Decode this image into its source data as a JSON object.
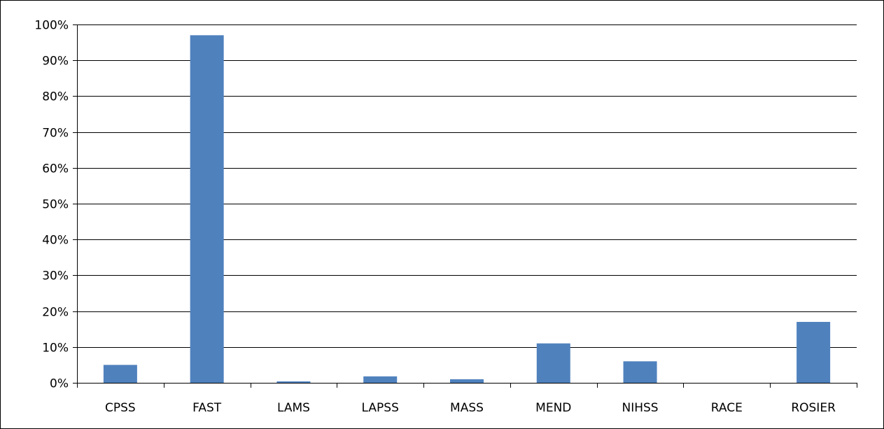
{
  "chart_data": {
    "type": "bar",
    "title": "",
    "xlabel": "",
    "ylabel": "",
    "categories": [
      "CPSS",
      "FAST",
      "LAMS",
      "LAPSS",
      "MASS",
      "MEND",
      "NIHSS",
      "RACE",
      "ROSIER"
    ],
    "values": [
      5,
      97,
      0.4,
      1.8,
      1,
      11,
      6,
      0,
      17
    ],
    "unit": "%",
    "ylim": [
      0,
      100
    ],
    "yticks": [
      0,
      10,
      20,
      30,
      40,
      50,
      60,
      70,
      80,
      90,
      100
    ],
    "ytick_labels": [
      "0%",
      "10%",
      "20%",
      "30%",
      "40%",
      "50%",
      "60%",
      "70%",
      "80%",
      "90%",
      "100%"
    ],
    "grid": true,
    "legend": "none",
    "colors": {
      "bar": "#4f81bd",
      "grid": "#000000",
      "frame": "#000000"
    }
  }
}
